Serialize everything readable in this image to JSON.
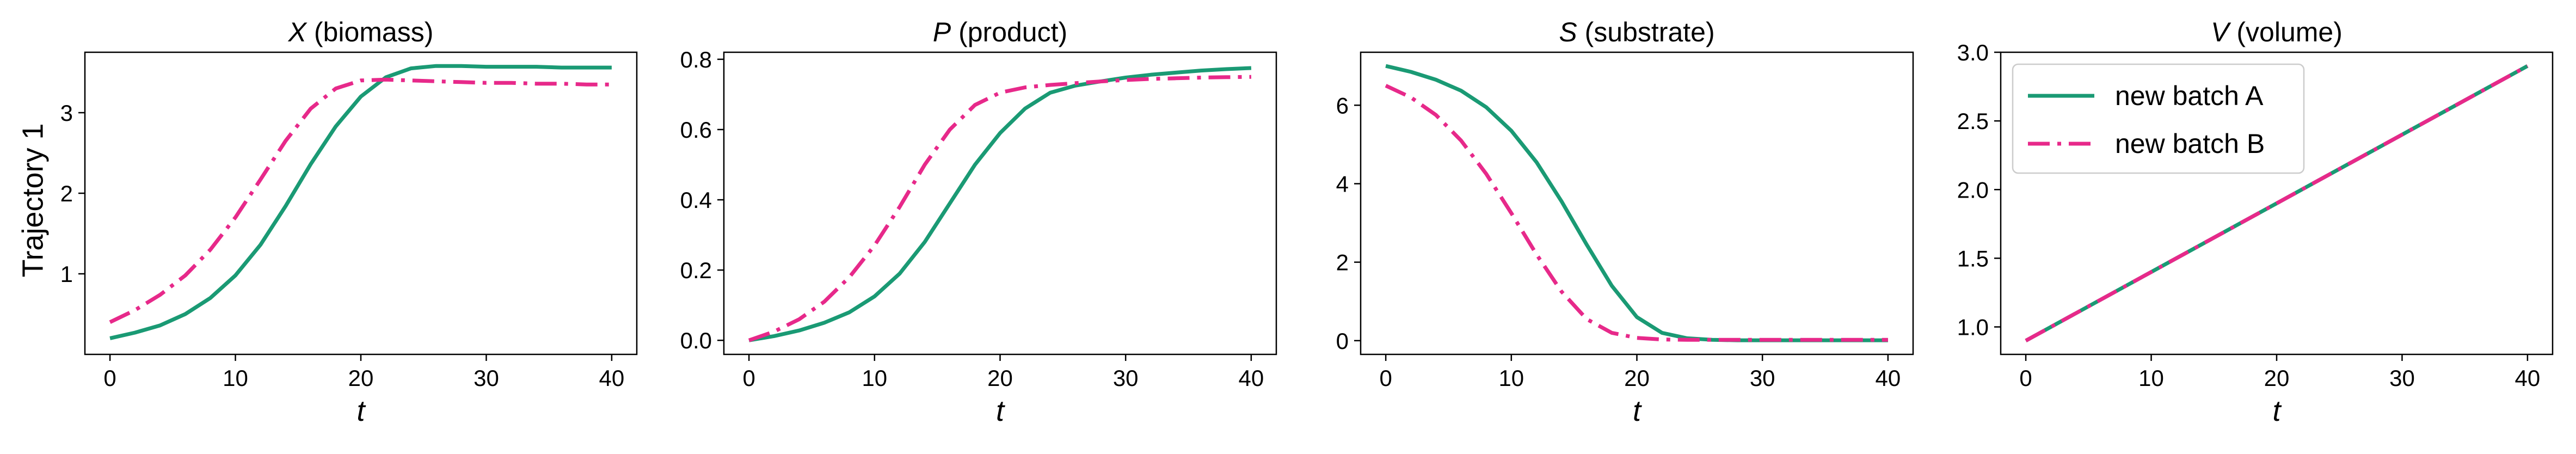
{
  "figure": {
    "row_label": "Trajectory 1"
  },
  "legend": {
    "entries": [
      {
        "label": "new batch A",
        "color": "#1a9a74",
        "style": "solid"
      },
      {
        "label": "new batch B",
        "color": "#e7298a",
        "style": "dashdot"
      }
    ],
    "placement": "upper-left of 4th panel"
  },
  "chart_data": [
    {
      "type": "line",
      "title_var": "X",
      "title_rest": " (biomass)",
      "xlabel": "t",
      "ylabel": "Trajectory 1",
      "xlim": [
        -2,
        42
      ],
      "ylim": [
        0.0,
        3.75
      ],
      "xticks": [
        0,
        10,
        20,
        30,
        40
      ],
      "yticks": [
        1,
        2,
        3
      ],
      "grid": false,
      "series": [
        {
          "name": "new batch A",
          "x": [
            0,
            2,
            4,
            6,
            8,
            10,
            12,
            14,
            16,
            18,
            20,
            22,
            24,
            26,
            28,
            30,
            32,
            34,
            36,
            38,
            40
          ],
          "y": [
            0.2,
            0.27,
            0.36,
            0.5,
            0.7,
            0.98,
            1.36,
            1.84,
            2.36,
            2.83,
            3.2,
            3.44,
            3.55,
            3.58,
            3.58,
            3.57,
            3.57,
            3.57,
            3.56,
            3.56,
            3.56
          ]
        },
        {
          "name": "new batch B",
          "x": [
            0,
            2,
            4,
            6,
            8,
            10,
            12,
            14,
            16,
            18,
            20,
            22,
            24,
            26,
            28,
            30,
            32,
            34,
            36,
            38,
            40
          ],
          "y": [
            0.4,
            0.55,
            0.74,
            0.98,
            1.3,
            1.7,
            2.17,
            2.65,
            3.05,
            3.3,
            3.4,
            3.41,
            3.4,
            3.39,
            3.38,
            3.37,
            3.37,
            3.36,
            3.36,
            3.35,
            3.35
          ]
        }
      ]
    },
    {
      "type": "line",
      "title_var": "P",
      "title_rest": " (product)",
      "xlabel": "t",
      "ylabel": "",
      "xlim": [
        -2,
        42
      ],
      "ylim": [
        -0.04,
        0.82
      ],
      "xticks": [
        0,
        10,
        20,
        30,
        40
      ],
      "yticks": [
        0.0,
        0.2,
        0.4,
        0.6,
        0.8
      ],
      "ytick_labels": [
        "0.0",
        "0.2",
        "0.4",
        "0.6",
        "0.8"
      ],
      "grid": false,
      "series": [
        {
          "name": "new batch A",
          "x": [
            0,
            2,
            4,
            6,
            8,
            10,
            12,
            14,
            16,
            18,
            20,
            22,
            24,
            26,
            28,
            30,
            32,
            34,
            36,
            38,
            40
          ],
          "y": [
            0.0,
            0.012,
            0.028,
            0.05,
            0.08,
            0.125,
            0.19,
            0.28,
            0.39,
            0.5,
            0.59,
            0.66,
            0.705,
            0.725,
            0.737,
            0.748,
            0.756,
            0.762,
            0.768,
            0.772,
            0.775
          ]
        },
        {
          "name": "new batch B",
          "x": [
            0,
            2,
            4,
            6,
            8,
            10,
            12,
            14,
            16,
            18,
            20,
            22,
            24,
            26,
            28,
            30,
            32,
            34,
            36,
            38,
            40
          ],
          "y": [
            0.0,
            0.025,
            0.06,
            0.11,
            0.18,
            0.27,
            0.38,
            0.5,
            0.6,
            0.67,
            0.705,
            0.72,
            0.727,
            0.732,
            0.737,
            0.741,
            0.744,
            0.746,
            0.748,
            0.749,
            0.75
          ]
        }
      ]
    },
    {
      "type": "line",
      "title_var": "S",
      "title_rest": " (substrate)",
      "xlabel": "t",
      "ylabel": "",
      "xlim": [
        -2,
        42
      ],
      "ylim": [
        -0.35,
        7.35
      ],
      "xticks": [
        0,
        10,
        20,
        30,
        40
      ],
      "yticks": [
        0,
        2,
        4,
        6
      ],
      "grid": false,
      "series": [
        {
          "name": "new batch A",
          "x": [
            0,
            2,
            4,
            6,
            8,
            10,
            12,
            14,
            16,
            18,
            20,
            22,
            24,
            26,
            28,
            30,
            32,
            34,
            36,
            38,
            40
          ],
          "y": [
            7.0,
            6.85,
            6.65,
            6.37,
            5.95,
            5.35,
            4.55,
            3.55,
            2.45,
            1.4,
            0.6,
            0.2,
            0.06,
            0.02,
            0.01,
            0.01,
            0.01,
            0.01,
            0.01,
            0.01,
            0.01
          ]
        },
        {
          "name": "new batch B",
          "x": [
            0,
            2,
            4,
            6,
            8,
            10,
            12,
            14,
            16,
            18,
            20,
            22,
            24,
            26,
            28,
            30,
            32,
            34,
            36,
            38,
            40
          ],
          "y": [
            6.5,
            6.2,
            5.75,
            5.1,
            4.25,
            3.25,
            2.2,
            1.25,
            0.55,
            0.2,
            0.07,
            0.03,
            0.02,
            0.02,
            0.02,
            0.02,
            0.02,
            0.02,
            0.02,
            0.02,
            0.02
          ]
        }
      ]
    },
    {
      "type": "line",
      "title_var": "V",
      "title_rest": " (volume)",
      "xlabel": "t",
      "ylabel": "",
      "xlim": [
        -2,
        42
      ],
      "ylim": [
        0.8,
        3.0
      ],
      "xticks": [
        0,
        10,
        20,
        30,
        40
      ],
      "yticks": [
        1.0,
        1.5,
        2.0,
        2.5,
        3.0
      ],
      "ytick_labels": [
        "1.0",
        "1.5",
        "2.0",
        "2.5",
        "3.0"
      ],
      "grid": false,
      "series": [
        {
          "name": "new batch A",
          "x": [
            0,
            40
          ],
          "y": [
            0.9,
            2.9
          ]
        },
        {
          "name": "new batch B",
          "x": [
            0,
            40
          ],
          "y": [
            0.9,
            2.9
          ]
        }
      ]
    }
  ]
}
